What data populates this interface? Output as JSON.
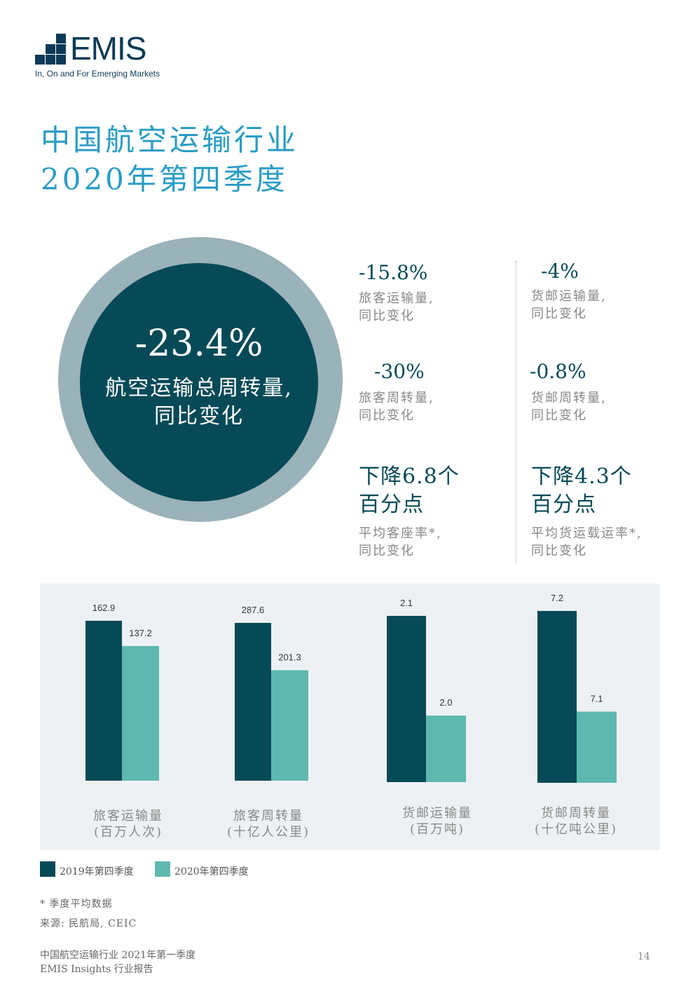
{
  "logo": {
    "brand": "EMIS",
    "tagline": "In, On and For Emerging Markets"
  },
  "title": {
    "line1": "中国航空运输行业",
    "line2": "2020年第四季度"
  },
  "highlight": {
    "value": "-23.4%",
    "label_line1": "航空运输总周转量,",
    "label_line2": "同比变化"
  },
  "stats": [
    {
      "value": "-15.8%",
      "line1": "旅客运输量,",
      "line2": "同比变化"
    },
    {
      "value": "-4%",
      "line1": "货邮运输量,",
      "line2": "同比变化"
    },
    {
      "value": "-30%",
      "line1": "旅客周转量,",
      "line2": "同比变化"
    },
    {
      "value": "-0.8%",
      "line1": "货邮周转量,",
      "line2": "同比变化"
    },
    {
      "big1": "下降6.8个",
      "big2": "百分点",
      "line1": "平均客座率*,",
      "line2": "同比变化"
    },
    {
      "big1": "下降4.3个",
      "big2": "百分点",
      "line1": "平均货运载运率*,",
      "line2": "同比变化"
    }
  ],
  "colors": {
    "dark": "#074a57",
    "light": "#5fb8b0",
    "ring": "#9ab2b9",
    "title": "#2a9cc6",
    "chart_bg": "#eef1f3"
  },
  "chart_data": {
    "type": "bar",
    "categories": [
      {
        "line1": "旅客运输量",
        "line2": "(百万人次)"
      },
      {
        "line1": "旅客周转量",
        "line2": "(十亿人公里)"
      },
      {
        "line1": "货邮运输量",
        "line2": "(百万吨)"
      },
      {
        "line1": "货邮周转量",
        "line2": "(十亿吨公里)"
      }
    ],
    "series": [
      {
        "name": "2019年第四季度",
        "values": [
          162.9,
          287.6,
          2.1,
          7.2
        ],
        "labels": [
          "162.9",
          "287.6",
          "2.1",
          "7.2"
        ]
      },
      {
        "name": "2020年第四季度",
        "values": [
          137.2,
          201.3,
          2.0,
          7.1
        ],
        "labels": [
          "137.2",
          "201.3",
          "2.0",
          "7.1"
        ]
      }
    ],
    "independent_scales": true,
    "legend": "bottom-left"
  },
  "notes": {
    "asterisk": "* 季度平均数据",
    "source": "来源: 民航局, CEIC"
  },
  "footer": {
    "line1": "中国航空运输行业 2021年第一季度",
    "line2": "EMIS Insights 行业报告",
    "page": "14"
  }
}
